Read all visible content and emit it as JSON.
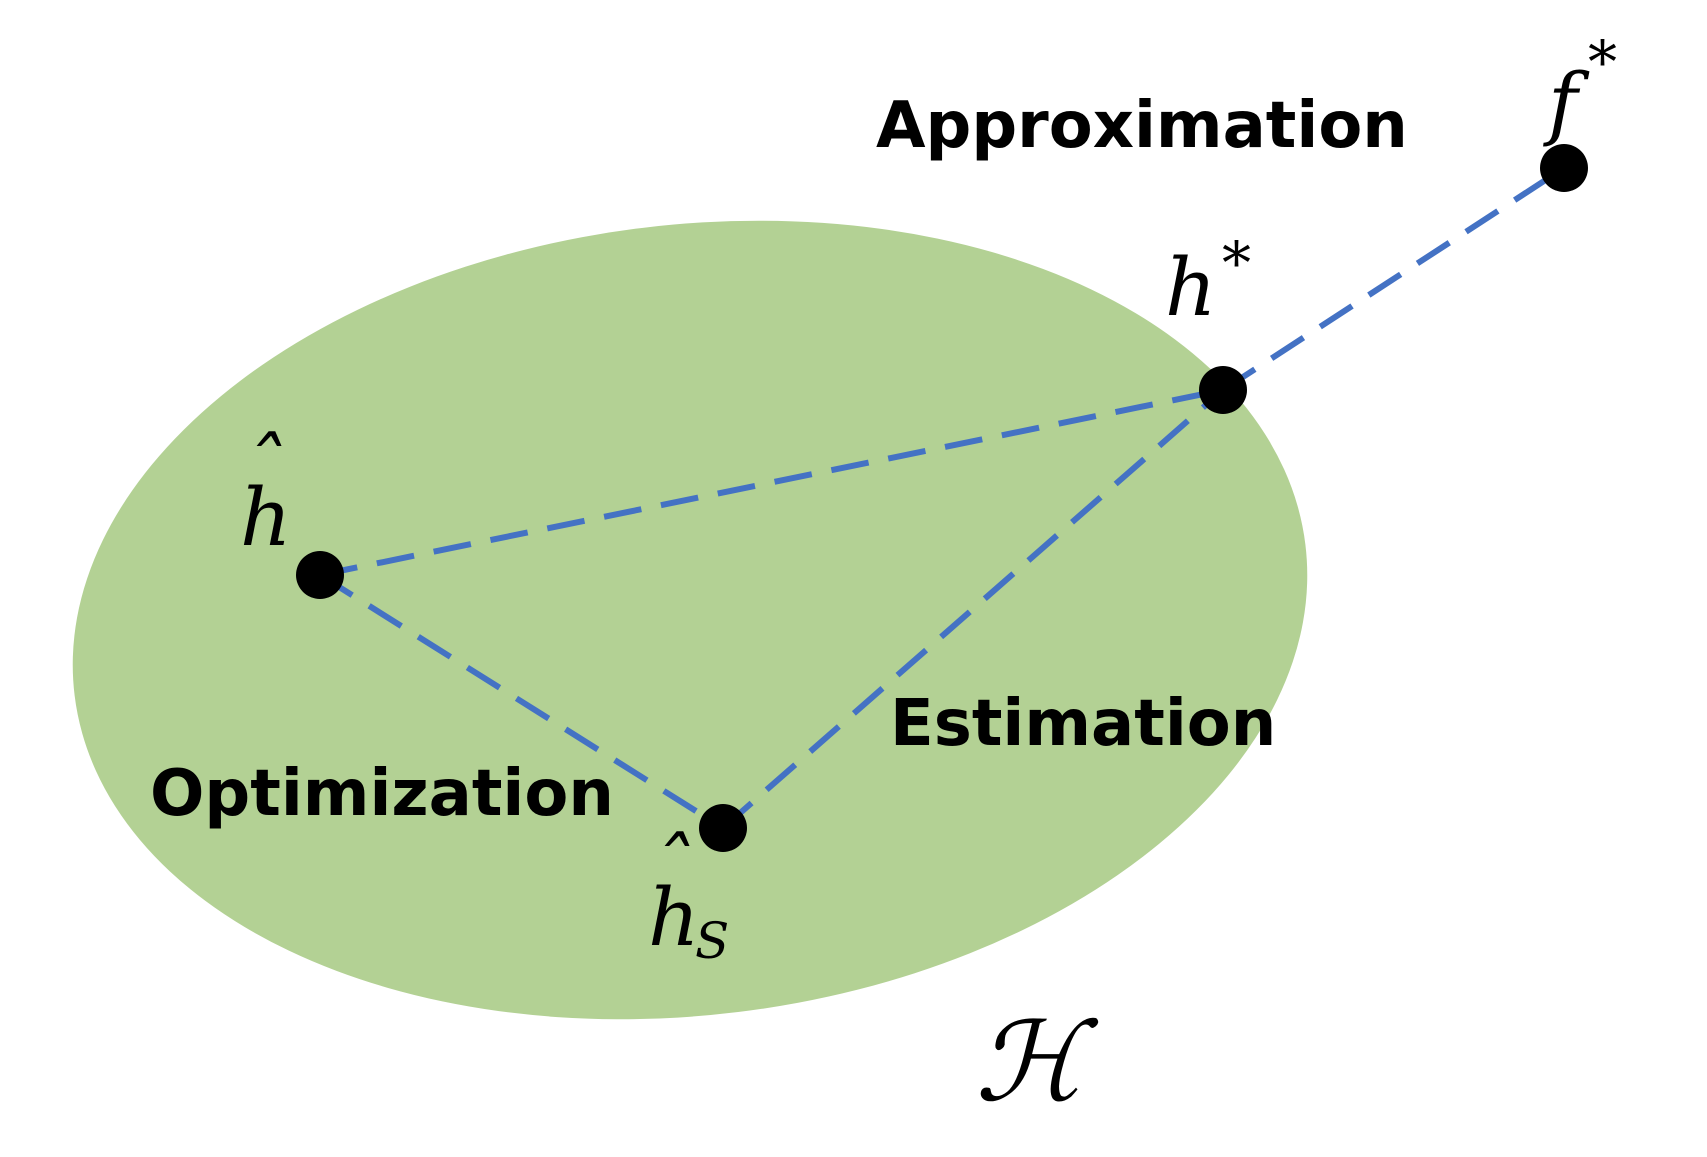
{
  "set": {
    "label": "ℋ",
    "fill": "#b3d194"
  },
  "points": {
    "f_star": {
      "base": "f",
      "sup": "*"
    },
    "h_star": {
      "base": "h",
      "sup": "*"
    },
    "h_hat": {
      "base": "h",
      "hat": "ˆ"
    },
    "h_hat_s": {
      "base": "h",
      "hat": "ˆ",
      "sub": "S"
    }
  },
  "labels": {
    "approximation": "Approximation",
    "estimation": "Estimation",
    "optimization": "Optimization"
  },
  "style": {
    "line_color": "#4472c4",
    "point_color": "#000000"
  }
}
